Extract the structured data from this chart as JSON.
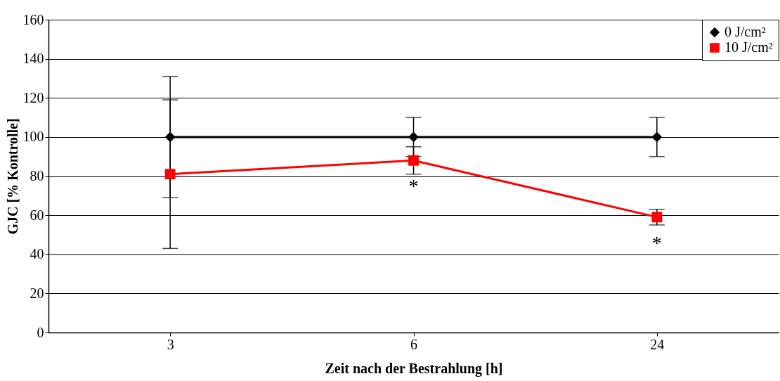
{
  "chart_data": {
    "type": "line",
    "xlabel": "Zeit nach der Bestrahlung [h]",
    "ylabel": "GJC [% Kontrolle]",
    "categories": [
      "3",
      "6",
      "24"
    ],
    "series": [
      {
        "name": "0 J/cm²",
        "color": "#000000",
        "marker": "diamond",
        "values": [
          100,
          100,
          100
        ],
        "errors": [
          31,
          10,
          10
        ]
      },
      {
        "name": "10 J/cm²",
        "color": "#ff0000",
        "marker": "square",
        "values": [
          81,
          88,
          59
        ],
        "errors": [
          38,
          7,
          4
        ]
      }
    ],
    "ylim": [
      0,
      160
    ],
    "yticks": [
      0,
      20,
      40,
      60,
      80,
      100,
      120,
      140,
      160
    ],
    "grid": "y",
    "legend": "top right",
    "annotations": [
      {
        "text": "*",
        "x": "6",
        "y": 88
      },
      {
        "text": "*",
        "x": "24",
        "y": 59
      }
    ]
  }
}
